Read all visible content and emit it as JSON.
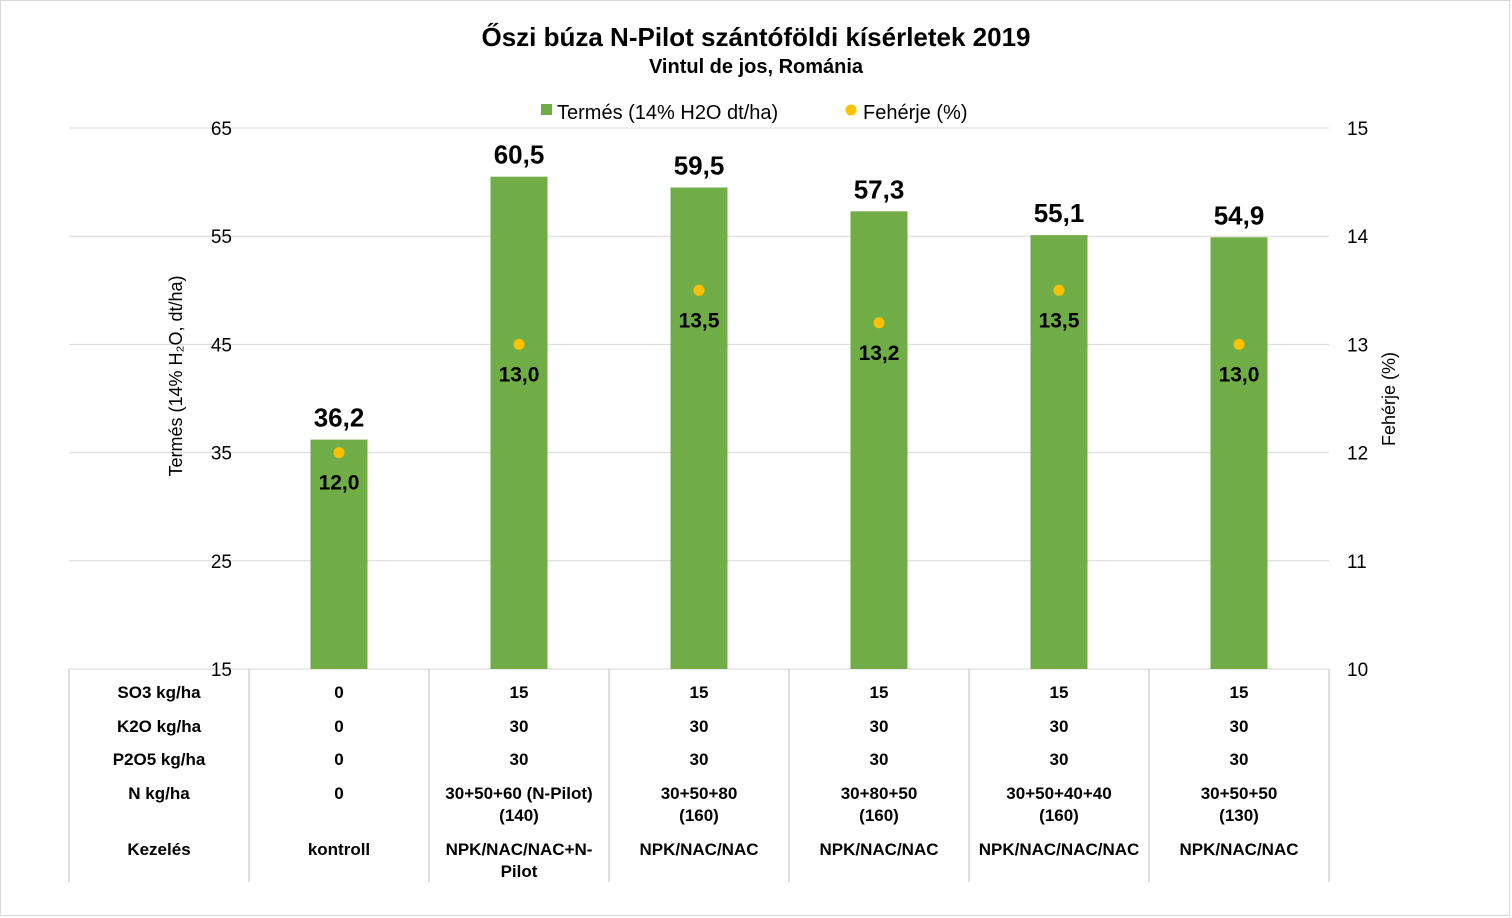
{
  "chart_data": {
    "type": "bar",
    "title": "Őszi búza N-Pilot szántóföldi kísérletek 2019",
    "subtitle": "Vintul de jos, Románia",
    "ylabel": "Termés (14% H₂O, dt/ha)",
    "y2label": "Fehérje (%)",
    "ylim": [
      15,
      65
    ],
    "yticks": [
      "65",
      "55",
      "45",
      "35",
      "25",
      "15"
    ],
    "y2lim": [
      10,
      15
    ],
    "y2ticks": [
      "15",
      "14",
      "13",
      "12",
      "11",
      "10"
    ],
    "legend_position": "top-center",
    "series": [
      {
        "name": "Termés (14% H2O dt/ha)",
        "kind": "bar",
        "color": "#70ad47",
        "values": [
          36.2,
          60.5,
          59.5,
          57.3,
          55.1,
          54.9
        ],
        "labels": [
          "36,2",
          "60,5",
          "59,5",
          "57,3",
          "55,1",
          "54,9"
        ]
      },
      {
        "name": "Fehérje (%)",
        "kind": "marker",
        "axis": "secondary",
        "color": "#ffc000",
        "values": [
          12.0,
          13.0,
          13.5,
          13.2,
          13.5,
          13.0
        ],
        "labels": [
          "12,0",
          "13,0",
          "13,5",
          "13,2",
          "13,5",
          "13,0"
        ]
      }
    ],
    "table": {
      "rows": [
        {
          "header": "SO3 kg/ha",
          "cells": [
            "0",
            "15",
            "15",
            "15",
            "15",
            "15"
          ]
        },
        {
          "header": "K2O kg/ha",
          "cells": [
            "0",
            "30",
            "30",
            "30",
            "30",
            "30"
          ]
        },
        {
          "header": "P2O5 kg/ha",
          "cells": [
            "0",
            "30",
            "30",
            "30",
            "30",
            "30"
          ]
        },
        {
          "header": "N kg/ha",
          "cells": [
            [
              "0"
            ],
            [
              "30+50+60 (N-Pilot)",
              "(140)"
            ],
            [
              "30+50+80",
              "(160)"
            ],
            [
              "30+80+50",
              "(160)"
            ],
            [
              "30+50+40+40",
              "(160)"
            ],
            [
              "30+50+50",
              "(130)"
            ]
          ]
        },
        {
          "header": "Kezelés",
          "cells": [
            [
              "kontroll"
            ],
            [
              "NPK/NAC/NAC+N-",
              "Pilot"
            ],
            [
              "NPK/NAC/NAC"
            ],
            [
              "NPK/NAC/NAC"
            ],
            [
              "NPK/NAC/NAC/NAC"
            ],
            [
              "NPK/NAC/NAC"
            ]
          ]
        }
      ]
    }
  },
  "colors": {
    "grid": "#d9d9d9",
    "table_line": "#bfbfbf"
  }
}
